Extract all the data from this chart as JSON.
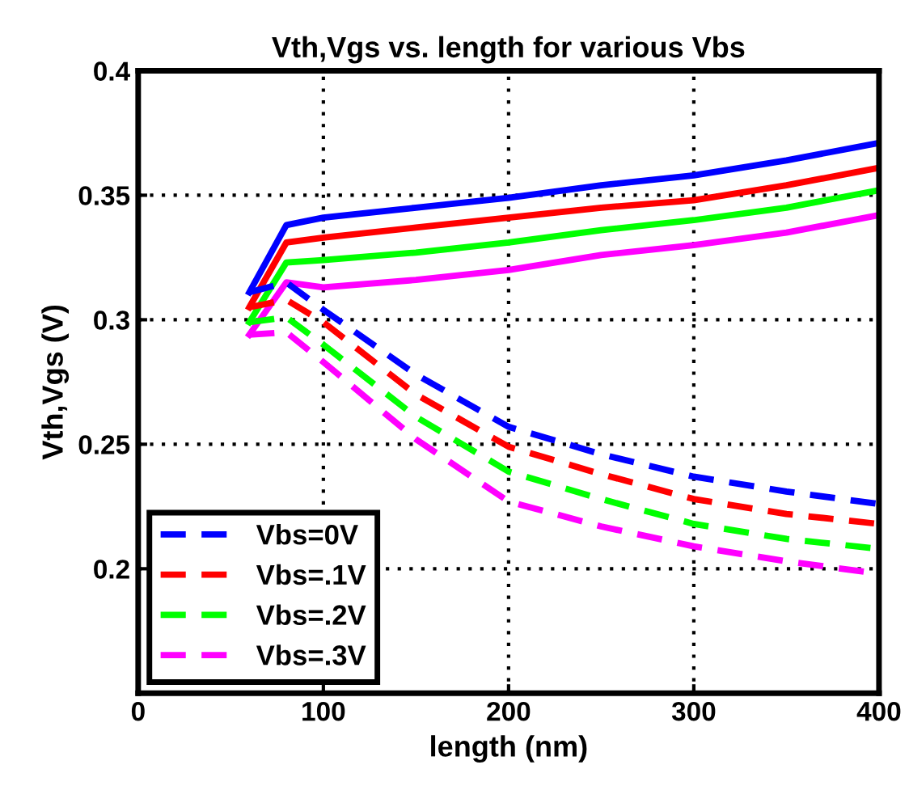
{
  "chart_data": {
    "type": "line",
    "title": "Vth,Vgs vs. length for various Vbs",
    "xlabel": "length (nm)",
    "ylabel": "Vth,Vgs (V)",
    "x": [
      60,
      80,
      100,
      150,
      200,
      250,
      300,
      350,
      400
    ],
    "series": [
      {
        "color": "#0000ff",
        "line_style": "solid",
        "values": [
          0.311,
          0.338,
          0.341,
          0.345,
          0.349,
          0.354,
          0.358,
          0.364,
          0.371
        ]
      },
      {
        "color": "#ff0000",
        "line_style": "solid",
        "values": [
          0.305,
          0.331,
          0.333,
          0.337,
          0.341,
          0.345,
          0.348,
          0.354,
          0.361
        ]
      },
      {
        "color": "#00ff00",
        "line_style": "solid",
        "values": [
          0.299,
          0.323,
          0.324,
          0.327,
          0.331,
          0.336,
          0.34,
          0.345,
          0.352
        ]
      },
      {
        "color": "#ff00ff",
        "line_style": "solid",
        "values": [
          0.294,
          0.315,
          0.313,
          0.316,
          0.32,
          0.326,
          0.33,
          0.335,
          0.342
        ]
      },
      {
        "name": "Vbs=0V",
        "color": "#0000ff",
        "line_style": "dashed",
        "values": [
          0.311,
          0.315,
          0.304,
          0.278,
          0.257,
          0.246,
          0.237,
          0.231,
          0.226
        ]
      },
      {
        "name": "Vbs=.1V",
        "color": "#ff0000",
        "line_style": "dashed",
        "values": [
          0.305,
          0.308,
          0.299,
          0.27,
          0.249,
          0.238,
          0.228,
          0.222,
          0.218
        ]
      },
      {
        "name": "Vbs=.2V",
        "color": "#00ff00",
        "line_style": "dashed",
        "values": [
          0.299,
          0.301,
          0.29,
          0.261,
          0.239,
          0.228,
          0.218,
          0.212,
          0.208
        ]
      },
      {
        "name": "Vbs=.3V",
        "color": "#ff00ff",
        "line_style": "dashed",
        "values": [
          0.294,
          0.295,
          0.283,
          0.252,
          0.227,
          0.217,
          0.209,
          0.203,
          0.198
        ]
      }
    ],
    "xlim": [
      0,
      400
    ],
    "xticks": [
      0,
      100,
      200,
      300,
      400
    ],
    "ylim": [
      0.15,
      0.4
    ],
    "yticks": [
      {
        "value": 0.15,
        "label": null
      },
      0.2,
      0.25,
      0.3,
      0.35,
      0.4
    ],
    "grid": true,
    "legend": "bottom left",
    "marker": "none"
  }
}
